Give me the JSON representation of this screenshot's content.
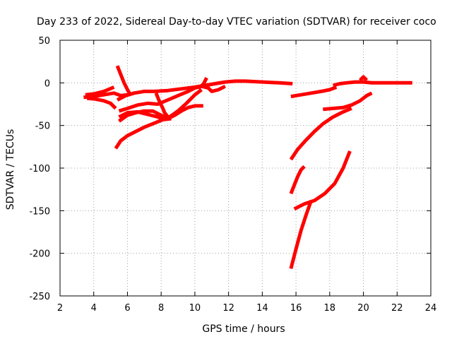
{
  "chart_data": {
    "type": "line",
    "title": "Day 233 of 2022, Sidereal Day-to-day VTEC variation (SDTVAR) for receiver coco",
    "xlabel": "GPS time / hours",
    "ylabel": "SDTVAR / TECUs",
    "xlim": [
      2,
      24
    ],
    "ylim": [
      -250,
      50
    ],
    "xticks": [
      "2",
      "4",
      "6",
      "8",
      "10",
      "12",
      "14",
      "16",
      "18",
      "20",
      "22",
      "24"
    ],
    "yticks": [
      "50",
      "0",
      "-50",
      "-100",
      "-150",
      "-200",
      "-250"
    ],
    "grid": true,
    "legend": "none",
    "color": "#ff0000",
    "series": [
      {
        "x": [
          3.4,
          4.0,
          4.6,
          5.2,
          5.6,
          6.0
        ],
        "y": [
          -17,
          -16,
          -14,
          -12,
          -15,
          -14
        ]
      },
      {
        "x": [
          3.5,
          4.0,
          4.6,
          5.2
        ],
        "y": [
          -14,
          -13,
          -10,
          -5
        ]
      },
      {
        "x": [
          3.6,
          4.1,
          4.6,
          5.0,
          5.3
        ],
        "y": [
          -18,
          -19,
          -21,
          -24,
          -30
        ]
      },
      {
        "x": [
          5.4,
          5.6,
          5.8,
          6.0,
          6.2
        ],
        "y": [
          20,
          10,
          0,
          -8,
          -15
        ]
      },
      {
        "x": [
          5.4,
          5.9,
          6.4,
          7.0,
          7.6,
          8.4,
          9.2,
          10.0,
          10.6,
          11.2,
          11.8,
          12.4,
          13.0,
          14.0,
          15.0,
          15.8
        ],
        "y": [
          -20,
          -15,
          -12,
          -10,
          -10,
          -9,
          -7,
          -5,
          -3,
          -1,
          1,
          2,
          2,
          1,
          0,
          -1
        ]
      },
      {
        "x": [
          5.5,
          6.0,
          6.6,
          7.2,
          7.8,
          8.4,
          9.0,
          9.6,
          10.0,
          10.4,
          10.8,
          11.0,
          11.4,
          11.8
        ],
        "y": [
          -33,
          -30,
          -26,
          -24,
          -25,
          -20,
          -15,
          -10,
          -6,
          -4,
          -6,
          -10,
          -8,
          -4
        ]
      },
      {
        "x": [
          5.5,
          6.0,
          6.5,
          7.0,
          7.5,
          8.0,
          8.4,
          8.8,
          9.2,
          9.6,
          10.0,
          10.5
        ],
        "y": [
          -45,
          -38,
          -35,
          -33,
          -33,
          -38,
          -42,
          -38,
          -33,
          -29,
          -27,
          -27
        ]
      },
      {
        "x": [
          5.5,
          6.0,
          6.6,
          7.2,
          7.8,
          8.2,
          8.6
        ],
        "y": [
          -40,
          -35,
          -34,
          -37,
          -40,
          -43,
          -42
        ]
      },
      {
        "x": [
          5.3,
          5.6,
          6.0,
          6.5,
          7.0,
          7.5,
          8.0,
          8.5,
          9.0,
          9.5,
          10.0,
          10.4
        ],
        "y": [
          -77,
          -68,
          -62,
          -57,
          -52,
          -48,
          -44,
          -40,
          -33,
          -24,
          -14,
          -8
        ]
      },
      {
        "x": [
          7.7,
          7.9,
          8.1,
          8.2,
          8.4
        ],
        "y": [
          -12,
          -22,
          -30,
          -35,
          -40
        ]
      },
      {
        "x": [
          10.2,
          10.5,
          10.7
        ],
        "y": [
          -6,
          -2,
          6
        ]
      },
      {
        "x": [
          15.7,
          16.3,
          16.9,
          17.5,
          18.0,
          18.4
        ],
        "y": [
          -16,
          -14,
          -12,
          -10,
          -8,
          -5
        ]
      },
      {
        "x": [
          18.2,
          18.6,
          19.0,
          19.5,
          20.0,
          20.5,
          21.0,
          22.0,
          22.9
        ],
        "y": [
          -3,
          -1,
          0,
          1,
          1,
          0,
          0,
          0,
          0
        ]
      },
      {
        "x": [
          19.8,
          20.0,
          20.2
        ],
        "y": [
          3,
          7,
          3
        ]
      },
      {
        "x": [
          17.6,
          18.2,
          18.8,
          19.3,
          19.8,
          20.2,
          20.5
        ],
        "y": [
          -31,
          -30,
          -29,
          -26,
          -21,
          -15,
          -12
        ]
      },
      {
        "x": [
          15.7,
          16.1,
          16.6,
          17.1,
          17.6,
          18.2,
          18.8,
          19.3
        ],
        "y": [
          -90,
          -78,
          -67,
          -57,
          -48,
          -40,
          -34,
          -30
        ]
      },
      {
        "x": [
          15.7,
          15.9,
          16.1,
          16.3,
          16.5
        ],
        "y": [
          -130,
          -120,
          -110,
          -102,
          -98
        ]
      },
      {
        "x": [
          15.7,
          16.0,
          16.3,
          16.6,
          16.9
        ],
        "y": [
          -218,
          -195,
          -173,
          -155,
          -138
        ]
      },
      {
        "x": [
          15.9,
          16.5,
          17.1,
          17.7,
          18.3,
          18.8,
          19.2
        ],
        "y": [
          -148,
          -142,
          -138,
          -130,
          -118,
          -100,
          -80
        ]
      }
    ]
  }
}
